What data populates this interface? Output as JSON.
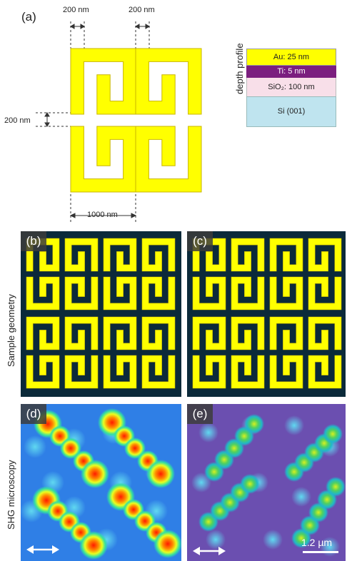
{
  "panel_a": {
    "label": "(a)",
    "dim_left_top": "200 nm",
    "dim_right_top": "200 nm",
    "dim_gap": "200 nm",
    "dim_bottom": "1000 nm"
  },
  "depth_profile": {
    "title": "depth profile",
    "layers": [
      {
        "text": "Au: 25 nm",
        "color": "#ffff00",
        "text_color": "#222222"
      },
      {
        "text": "Ti: 5 nm",
        "color": "#7b1e7f",
        "text_color": "#ffffff"
      },
      {
        "text": "SiO₂: 100 nm",
        "color": "#f8dfe9",
        "text_color": "#222222"
      },
      {
        "text": "Si (001)",
        "color": "#bfe4ef",
        "text_color": "#222222"
      }
    ]
  },
  "row_labels": {
    "geometry": "Sample geometry",
    "shg": "SHG microscopy"
  },
  "panels": {
    "b": "(b)",
    "c": "(c)",
    "d": "(d)",
    "e": "(e)"
  },
  "scale_bar": "1.2 µm",
  "colors": {
    "gold": "#ffff00",
    "gold_edge": "#c9b600",
    "substrate": "#0b2a3a",
    "shg_d_bg": "#2f7fe6",
    "shg_e_bg": "#6b4fb0"
  }
}
